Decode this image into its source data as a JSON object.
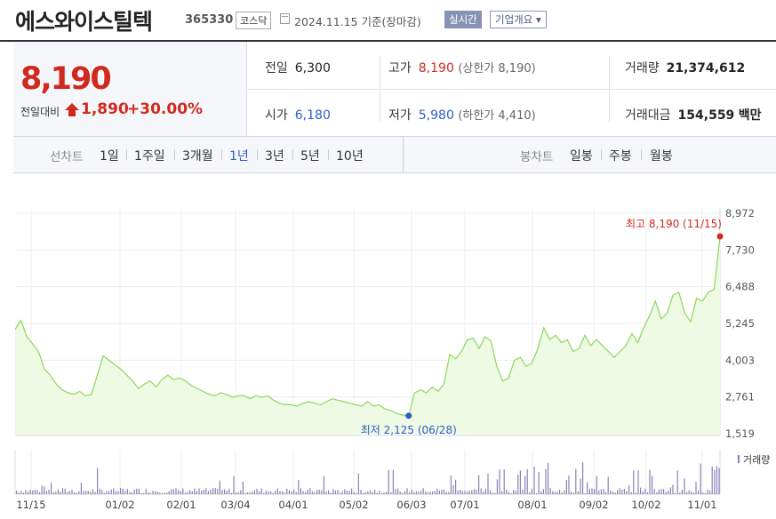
{
  "header": {
    "name": "에스와이스틸텍",
    "code": "365330",
    "market": "코스닥",
    "date": "2024.11.15  기준(장마감)",
    "realtime": "실시간",
    "company_info": "기업개요 ▾",
    "calendar_icon": "calendar-icon"
  },
  "price": {
    "current": "8,190",
    "change_label": "전일대비",
    "change": "1,890",
    "percent": "+30.00%",
    "up_icon": "triangle-up-icon",
    "color_up": "#d0291d",
    "color_down": "#2d5cc9"
  },
  "stats": {
    "prev_label": "전일",
    "prev": "6,300",
    "open_label": "시가",
    "open": "6,180",
    "high_label": "고가",
    "high": "8,190",
    "upper_limit": "(상한가 8,190)",
    "low_label": "저가",
    "low": "5,980",
    "lower_limit": "(하한가 4,410)",
    "volume_label": "거래량",
    "volume": "21,374,612",
    "amount_label": "거래대금",
    "amount": "154,559",
    "amount_unit": "백만"
  },
  "tabs": {
    "line_label": "선차트",
    "line": [
      "1일",
      "1주일",
      "3개월",
      "1년",
      "3년",
      "5년",
      "10년"
    ],
    "selected": "1년",
    "candle_label": "봉차트",
    "candle": [
      "일봉",
      "주봉",
      "월봉"
    ]
  },
  "chart_data": {
    "type": "line",
    "y_ticks": [
      "8,972",
      "7,730",
      "6,488",
      "5,245",
      "4,003",
      "2,761",
      "1,519"
    ],
    "ylim": [
      1519,
      8972
    ],
    "x_ticks": [
      "11/15",
      "01/02",
      "02/01",
      "03/04",
      "04/01",
      "05/02",
      "06/03",
      "07/01",
      "08/01",
      "09/02",
      "10/02",
      "11/01"
    ],
    "high_annotation": "최고 8,190 (11/15)",
    "low_annotation": "최저 2,125 (06/28)",
    "volume_label": "거래량",
    "line_color": "#8dd65c",
    "fill_color": "#eefae4",
    "high_color": "#d0291d",
    "low_color": "#2d5cc9",
    "volume_color": "#8b7fb8",
    "values": [
      5050,
      5350,
      4800,
      4550,
      4300,
      3700,
      3500,
      3200,
      3000,
      2900,
      2850,
      2950,
      2800,
      2850,
      3500,
      4150,
      4000,
      3850,
      3700,
      3500,
      3300,
      3050,
      3200,
      3300,
      3100,
      3350,
      3500,
      3350,
      3400,
      3300,
      3150,
      3050,
      2950,
      2850,
      2800,
      2900,
      2850,
      2750,
      2800,
      2800,
      2700,
      2800,
      2750,
      2800,
      2650,
      2550,
      2500,
      2500,
      2450,
      2550,
      2600,
      2550,
      2500,
      2600,
      2700,
      2650,
      2600,
      2550,
      2500,
      2450,
      2600,
      2450,
      2500,
      2350,
      2300,
      2200,
      2150,
      2125,
      2900,
      3000,
      2900,
      3100,
      2950,
      3200,
      4200,
      4050,
      4300,
      4700,
      4750,
      4400,
      4800,
      4650,
      3800,
      3300,
      3400,
      4000,
      4100,
      3800,
      3900,
      4400,
      5100,
      4700,
      4850,
      4600,
      4700,
      4300,
      4400,
      4850,
      4500,
      4700,
      4500,
      4300,
      4100,
      4300,
      4500,
      4900,
      4600,
      5100,
      5500,
      6000,
      5400,
      5600,
      6200,
      6300,
      5600,
      5300,
      6100,
      6000,
      6300,
      6400,
      8190
    ]
  }
}
